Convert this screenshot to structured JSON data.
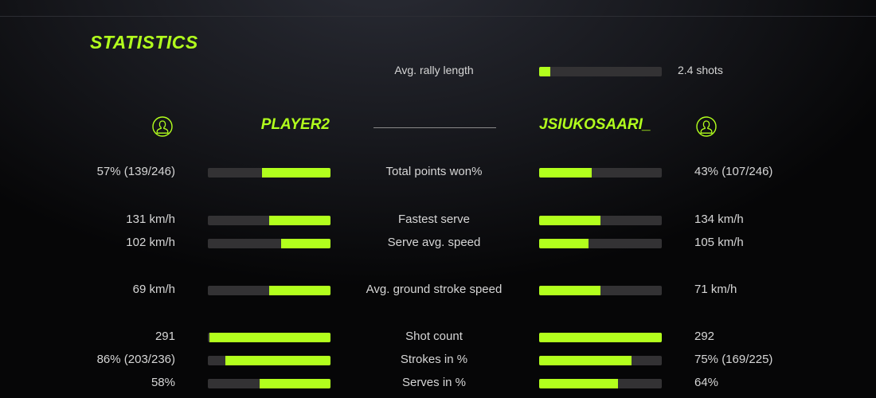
{
  "title": "STATISTICS",
  "accent_color": "#b2ff1d",
  "rally": {
    "label": "Avg. rally length",
    "value": "2.4 shots",
    "fraction": 0.09
  },
  "players": {
    "left": {
      "name": "PLAYER2",
      "icon": "user-circle-icon"
    },
    "right": {
      "name": "JSIUKOSAARI_",
      "icon": "user-circle-icon"
    }
  },
  "stats": [
    {
      "label": "Total points won%",
      "left": "57% (139/246)",
      "right": "43% (107/246)",
      "left_fraction": 0.56,
      "right_fraction": 0.43
    },
    {
      "label": "Fastest serve",
      "left": "131 km/h",
      "right": "134 km/h",
      "left_fraction": 0.5,
      "right_fraction": 0.5
    },
    {
      "label": "Serve avg. speed",
      "left": "102 km/h",
      "right": "105 km/h",
      "left_fraction": 0.4,
      "right_fraction": 0.4
    },
    {
      "label": "Avg. ground stroke speed",
      "left": "69 km/h",
      "right": "71 km/h",
      "left_fraction": 0.5,
      "right_fraction": 0.5
    },
    {
      "label": "Shot count",
      "left": "291",
      "right": "292",
      "left_fraction": 0.99,
      "right_fraction": 1.0
    },
    {
      "label": "Strokes in %",
      "left": "86% (203/236)",
      "right": "75% (169/225)",
      "left_fraction": 0.86,
      "right_fraction": 0.75
    },
    {
      "label": "Serves in %",
      "left": "58%",
      "right": "64%",
      "left_fraction": 0.58,
      "right_fraction": 0.64
    }
  ]
}
